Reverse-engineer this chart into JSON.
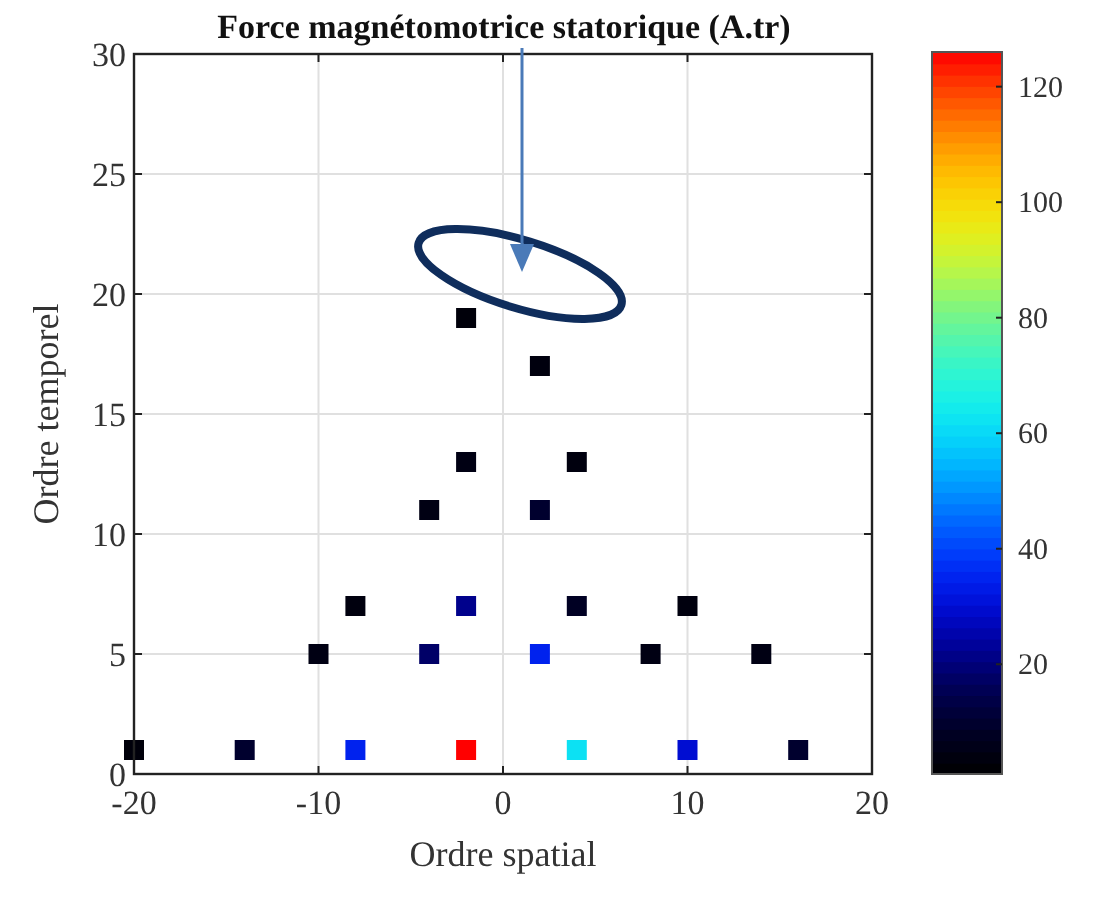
{
  "chart_data": {
    "type": "scatter",
    "title": "Force magnétomotrice statorique (A.tr)",
    "xlabel": "Ordre spatial",
    "ylabel": "Ordre temporel",
    "x": [
      -20,
      -14,
      -8,
      -2,
      4,
      10,
      16,
      -10,
      -4,
      2,
      8,
      14,
      -8,
      -2,
      4,
      10,
      -4,
      2,
      -2,
      4,
      2,
      -2
    ],
    "values": [
      1,
      1,
      1,
      1,
      1,
      1,
      1,
      5,
      5,
      5,
      5,
      5,
      7,
      7,
      7,
      7,
      11,
      11,
      13,
      13,
      17,
      19
    ],
    "cvalues": [
      3,
      10,
      35,
      126,
      62,
      30,
      10,
      5,
      18,
      35,
      5,
      5,
      4,
      22,
      8,
      4,
      5,
      10,
      5,
      4,
      4,
      3
    ],
    "marker": "square",
    "xlim": [
      -20,
      20
    ],
    "ylim": [
      0,
      30
    ],
    "xticks": [
      -20,
      -10,
      0,
      10,
      20
    ],
    "yticks": [
      0,
      5,
      10,
      15,
      20,
      25,
      30
    ],
    "clim": [
      1,
      126
    ],
    "cticks": [
      20,
      40,
      60,
      80,
      100,
      120
    ],
    "grid": true
  }
}
